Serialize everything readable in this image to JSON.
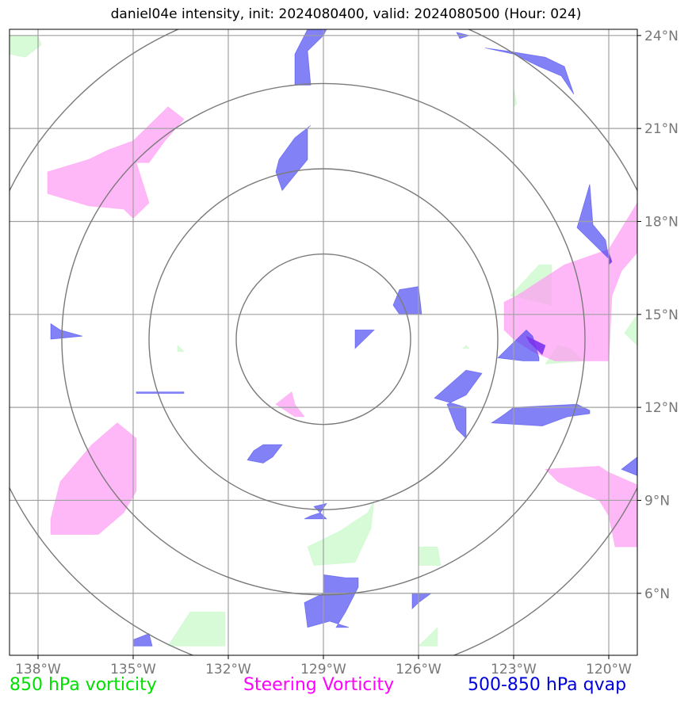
{
  "chart_data": {
    "type": "map",
    "title": "daniel04e intensity, init: 2024080400, valid: 2024080500 (Hour: 024)",
    "lon_range": [
      -138.9,
      -119.1
    ],
    "lat_range": [
      4.0,
      24.2
    ],
    "x_ticks": [
      {
        "lon": -138,
        "label": "138°W"
      },
      {
        "lon": -135,
        "label": "135°W"
      },
      {
        "lon": -132,
        "label": "132°W"
      },
      {
        "lon": -129,
        "label": "129°W"
      },
      {
        "lon": -126,
        "label": "126°W"
      },
      {
        "lon": -123,
        "label": "123°W"
      },
      {
        "lon": -120,
        "label": "120°W"
      }
    ],
    "y_ticks": [
      {
        "lat": 6,
        "label": "6°N"
      },
      {
        "lat": 9,
        "label": "9°N"
      },
      {
        "lat": 12,
        "label": "12°N"
      },
      {
        "lat": 15,
        "label": "15°N"
      },
      {
        "lat": 18,
        "label": "18°N"
      },
      {
        "lat": 21,
        "label": "21°N"
      },
      {
        "lat": 24,
        "label": "24°N"
      }
    ],
    "grid": true,
    "range_rings": {
      "center": [
        -129.0,
        14.2
      ],
      "radii_deg": [
        2.75,
        5.5,
        8.25,
        11.0
      ]
    },
    "legend": {
      "green": "850 hPa vorticity",
      "magenta": "Steering Vorticity",
      "blue": "500-850 hPa qvap"
    },
    "colors": {
      "green": "#c8f8c8",
      "magenta": "#ff9cf4",
      "blue": "#3535f0"
    },
    "series": [
      {
        "key": "green",
        "polygons": [
          [
            [
              -138.9,
              24.0
            ],
            [
              -138.0,
              24.0
            ],
            [
              -137.9,
              23.7
            ],
            [
              -138.4,
              23.3
            ],
            [
              -138.9,
              23.4
            ]
          ],
          [
            [
              -123.0,
              22.3
            ],
            [
              -122.9,
              21.8
            ],
            [
              -123.0,
              21.7
            ]
          ],
          [
            [
              -122.2,
              16.6
            ],
            [
              -121.8,
              16.6
            ],
            [
              -121.8,
              15.3
            ],
            [
              -123.1,
              15.6
            ]
          ],
          [
            [
              -121.6,
              14.0
            ],
            [
              -121.2,
              13.9
            ],
            [
              -120.8,
              13.5
            ],
            [
              -122.0,
              13.4
            ]
          ],
          [
            [
              -119.1,
              15.0
            ],
            [
              -119.1,
              14.0
            ],
            [
              -119.5,
              14.4
            ]
          ],
          [
            [
              -128.5,
              8.0
            ],
            [
              -127.6,
              8.6
            ],
            [
              -127.4,
              9.0
            ],
            [
              -127.5,
              8.1
            ],
            [
              -128.0,
              7.0
            ],
            [
              -129.3,
              6.9
            ],
            [
              -129.5,
              7.5
            ]
          ],
          [
            [
              -126.0,
              7.5
            ],
            [
              -125.4,
              7.5
            ],
            [
              -125.3,
              6.9
            ],
            [
              -126.0,
              6.9
            ]
          ],
          [
            [
              -133.2,
              5.4
            ],
            [
              -132.1,
              5.4
            ],
            [
              -132.1,
              4.3
            ],
            [
              -133.9,
              4.3
            ]
          ],
          [
            [
              -126.0,
              4.3
            ],
            [
              -125.4,
              4.3
            ],
            [
              -125.4,
              4.9
            ]
          ],
          [
            [
              -133.6,
              14.0
            ],
            [
              -133.4,
              13.8
            ],
            [
              -133.6,
              13.8
            ]
          ],
          [
            [
              -124.5,
              14.0
            ],
            [
              -124.4,
              13.9
            ],
            [
              -124.6,
              13.9
            ]
          ]
        ]
      },
      {
        "key": "magenta",
        "polygons": [
          [
            [
              -134.9,
              19.9
            ],
            [
              -134.5,
              19.9
            ],
            [
              -134.0,
              20.6
            ],
            [
              -133.4,
              21.3
            ],
            [
              -133.9,
              21.7
            ],
            [
              -135.0,
              20.6
            ],
            [
              -135.8,
              20.3
            ],
            [
              -136.4,
              20.0
            ],
            [
              -137.7,
              19.6
            ],
            [
              -137.7,
              18.9
            ],
            [
              -136.4,
              18.5
            ],
            [
              -135.3,
              18.4
            ],
            [
              -135.0,
              18.1
            ],
            [
              -134.5,
              18.6
            ]
          ],
          [
            [
              -122.9,
              15.6
            ],
            [
              -122.3,
              16.0
            ],
            [
              -121.4,
              16.6
            ],
            [
              -120.0,
              17.1
            ],
            [
              -119.1,
              18.6
            ],
            [
              -119.1,
              17.0
            ],
            [
              -119.6,
              16.4
            ],
            [
              -119.9,
              15.6
            ],
            [
              -120.0,
              13.5
            ],
            [
              -121.7,
              13.5
            ],
            [
              -122.4,
              13.8
            ],
            [
              -123.0,
              14.2
            ],
            [
              -123.3,
              14.5
            ],
            [
              -123.3,
              15.4
            ]
          ],
          [
            [
              -137.3,
              9.6
            ],
            [
              -136.3,
              10.8
            ],
            [
              -135.5,
              11.5
            ],
            [
              -134.9,
              11.0
            ],
            [
              -134.9,
              9.3
            ],
            [
              -135.3,
              8.6
            ],
            [
              -136.1,
              7.9
            ],
            [
              -137.6,
              7.9
            ],
            [
              -137.6,
              8.4
            ]
          ],
          [
            [
              -130.5,
              12.1
            ],
            [
              -130.0,
              12.5
            ],
            [
              -129.9,
              12.1
            ],
            [
              -129.6,
              11.7
            ],
            [
              -129.9,
              11.7
            ],
            [
              -130.2,
              11.9
            ]
          ],
          [
            [
              -122.0,
              10.0
            ],
            [
              -120.3,
              10.1
            ],
            [
              -120.0,
              9.9
            ],
            [
              -119.1,
              9.5
            ],
            [
              -119.1,
              7.5
            ],
            [
              -119.8,
              7.5
            ],
            [
              -120.0,
              8.5
            ],
            [
              -120.3,
              9.0
            ],
            [
              -121.0,
              9.3
            ],
            [
              -121.6,
              9.6
            ]
          ]
        ]
      },
      {
        "key": "blue",
        "polygons": [
          [
            [
              -129.0,
              24.0
            ],
            [
              -128.9,
              24.2
            ],
            [
              -129.5,
              24.2
            ],
            [
              -129.9,
              23.4
            ],
            [
              -129.9,
              22.4
            ],
            [
              -129.4,
              22.4
            ],
            [
              -129.5,
              23.5
            ]
          ],
          [
            [
              -124.4,
              24.0
            ],
            [
              -124.8,
              24.1
            ],
            [
              -124.7,
              23.9
            ]
          ],
          [
            [
              -123.0,
              23.4
            ],
            [
              -122.2,
              23.0
            ],
            [
              -121.5,
              22.7
            ],
            [
              -121.1,
              22.1
            ],
            [
              -121.4,
              23.0
            ],
            [
              -122.0,
              23.3
            ],
            [
              -123.2,
              23.5
            ],
            [
              -123.9,
              23.6
            ]
          ],
          [
            [
              -129.5,
              21.0
            ],
            [
              -129.5,
              20.0
            ],
            [
              -130.3,
              19.0
            ],
            [
              -130.5,
              19.6
            ],
            [
              -130.4,
              20.0
            ],
            [
              -129.9,
              20.7
            ],
            [
              -129.4,
              21.1
            ]
          ],
          [
            [
              -121.0,
              17.8
            ],
            [
              -120.0,
              16.8
            ],
            [
              -120.1,
              17.4
            ],
            [
              -120.5,
              17.9
            ],
            [
              -120.6,
              19.2
            ]
          ],
          [
            [
              -126.6,
              15.8
            ],
            [
              -126.0,
              15.9
            ],
            [
              -125.9,
              15.0
            ],
            [
              -126.6,
              15.0
            ],
            [
              -126.8,
              15.3
            ]
          ],
          [
            [
              -137.6,
              14.7
            ],
            [
              -137.3,
              14.5
            ],
            [
              -136.6,
              14.3
            ],
            [
              -137.6,
              14.2
            ]
          ],
          [
            [
              -128.0,
              14.5
            ],
            [
              -127.4,
              14.5
            ],
            [
              -127.9,
              14.0
            ],
            [
              -128.0,
              13.9
            ]
          ],
          [
            [
              -122.7,
              13.5
            ],
            [
              -122.2,
              13.5
            ],
            [
              -122.2,
              13.6
            ],
            [
              -122.4,
              14.3
            ],
            [
              -122.6,
              14.5
            ],
            [
              -123.0,
              14.1
            ],
            [
              -123.5,
              13.6
            ]
          ],
          [
            [
              -125.1,
              12.1
            ],
            [
              -124.5,
              12.4
            ],
            [
              -124.0,
              13.1
            ],
            [
              -124.5,
              13.2
            ],
            [
              -125.5,
              12.3
            ],
            [
              -124.5,
              12.0
            ],
            [
              -124.5,
              11.0
            ],
            [
              -124.8,
              11.3
            ]
          ],
          [
            [
              -123.0,
              12.0
            ],
            [
              -121.0,
              12.1
            ],
            [
              -120.6,
              11.9
            ],
            [
              -120.6,
              11.8
            ],
            [
              -121.3,
              11.7
            ],
            [
              -122.1,
              11.4
            ],
            [
              -123.7,
              11.5
            ],
            [
              -123.4,
              11.7
            ]
          ],
          [
            [
              -130.6,
              10.4
            ],
            [
              -130.3,
              10.8
            ],
            [
              -130.9,
              10.8
            ],
            [
              -131.2,
              10.6
            ],
            [
              -131.4,
              10.3
            ],
            [
              -130.9,
              10.2
            ]
          ],
          [
            [
              -129.3,
              8.8
            ],
            [
              -128.9,
              8.9
            ],
            [
              -129.1,
              8.6
            ],
            [
              -129.4,
              8.5
            ],
            [
              -129.6,
              8.4
            ],
            [
              -128.9,
              8.4
            ]
          ],
          [
            [
              -129.0,
              6.0
            ],
            [
              -129.0,
              6.6
            ],
            [
              -128.3,
              6.5
            ],
            [
              -127.9,
              6.5
            ],
            [
              -127.9,
              6.2
            ],
            [
              -128.0,
              6.0
            ],
            [
              -128.3,
              5.4
            ],
            [
              -128.6,
              4.9
            ],
            [
              -128.2,
              4.9
            ],
            [
              -128.8,
              5.1
            ],
            [
              -129.5,
              4.9
            ],
            [
              -129.6,
              5.7
            ]
          ],
          [
            [
              -126.2,
              6.0
            ],
            [
              -125.6,
              6.0
            ],
            [
              -126.0,
              5.7
            ],
            [
              -126.2,
              5.5
            ]
          ],
          [
            [
              -135.0,
              4.5
            ],
            [
              -134.5,
              4.7
            ],
            [
              -134.4,
              4.3
            ],
            [
              -135.0,
              4.3
            ]
          ],
          [
            [
              -119.1,
              10.4
            ],
            [
              -119.1,
              9.8
            ],
            [
              -119.6,
              10.0
            ]
          ],
          [
            [
              -134.9,
              12.5
            ],
            [
              -133.4,
              12.5
            ],
            [
              -133.4,
              12.45
            ],
            [
              -134.9,
              12.45
            ]
          ]
        ]
      },
      {
        "key": "purple",
        "color": "#7a33ee",
        "polygons": [
          [
            [
              -122.6,
              14.3
            ],
            [
              -122.0,
              14.0
            ],
            [
              -122.1,
              13.7
            ],
            [
              -122.5,
              14.1
            ]
          ],
          [
            [
              -120.0,
              17.0
            ],
            [
              -119.9,
              16.7
            ],
            [
              -120.0,
              16.6
            ]
          ]
        ]
      }
    ]
  },
  "legend_labels": {
    "green": "850 hPa vorticity",
    "magenta": "Steering Vorticity",
    "blue": "500-850 hPa qvap"
  }
}
